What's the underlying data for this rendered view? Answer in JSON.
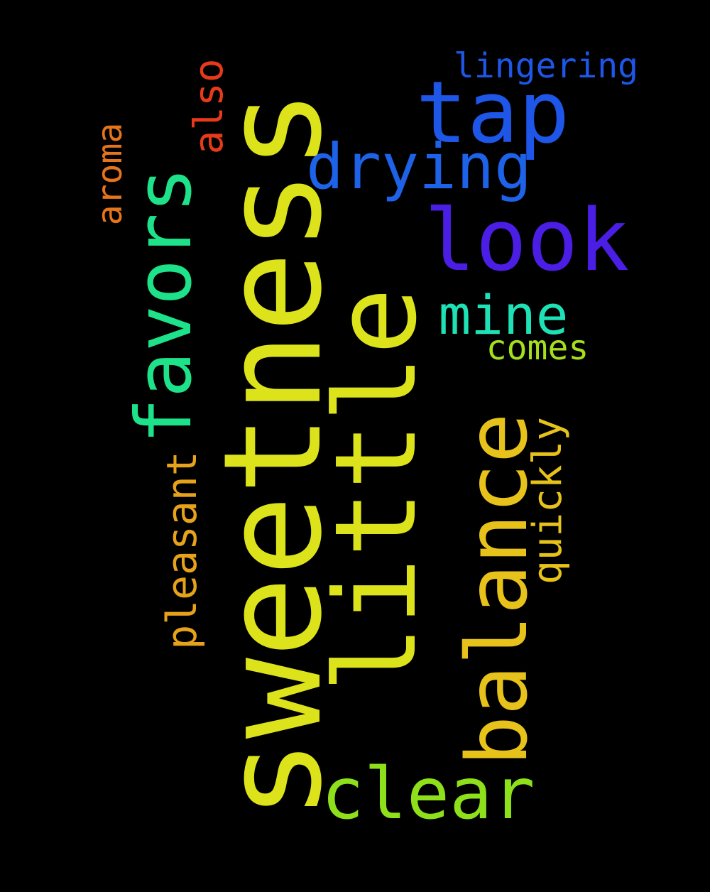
{
  "background": "#000000",
  "words": [
    {
      "text": "sweetness",
      "color": "#dde31a"
    },
    {
      "text": "little",
      "color": "#dde31a"
    },
    {
      "text": "balance",
      "color": "#e6c21a"
    },
    {
      "text": "favors",
      "color": "#1ee28a"
    },
    {
      "text": "tap",
      "color": "#1e56e8"
    },
    {
      "text": "look",
      "color": "#4b1ee6"
    },
    {
      "text": "drying",
      "color": "#1e62e8"
    },
    {
      "text": "clear",
      "color": "#8ee01a"
    },
    {
      "text": "mine",
      "color": "#1ee2b6"
    },
    {
      "text": "pleasant",
      "color": "#e6a21a"
    },
    {
      "text": "quickly",
      "color": "#e6c21a"
    },
    {
      "text": "also",
      "color": "#e63a1a"
    },
    {
      "text": "aroma",
      "color": "#e6741a"
    },
    {
      "text": "lingering",
      "color": "#1e56e8"
    },
    {
      "text": "comes",
      "color": "#a6e01a"
    }
  ]
}
